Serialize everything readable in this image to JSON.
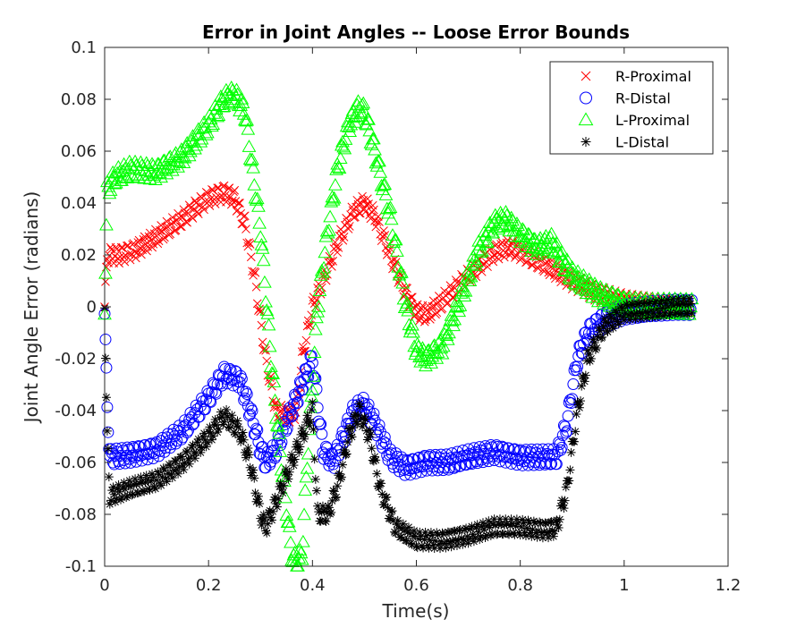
{
  "chart_data": {
    "type": "scatter",
    "title": "Error in Joint Angles -- Loose Error Bounds",
    "xlabel": "Time(s)",
    "ylabel": "Joint Angle Error (radians)",
    "xlim": [
      0,
      1.2
    ],
    "ylim": [
      -0.1,
      0.1
    ],
    "x_ticks": [
      0,
      0.2,
      0.4,
      0.6,
      0.8,
      1,
      1.2
    ],
    "x_tick_labels": [
      "0",
      "0.2",
      "0.4",
      "0.6",
      "0.8",
      "1",
      "1.2"
    ],
    "y_ticks": [
      -0.1,
      -0.08,
      -0.06,
      -0.04,
      -0.02,
      0,
      0.02,
      0.04,
      0.06,
      0.08,
      0.1
    ],
    "y_tick_labels": [
      "-0.1",
      "-0.08",
      "-0.06",
      "-0.04",
      "-0.02",
      "0",
      "0.02",
      "0.04",
      "0.06",
      "0.08",
      "0.1"
    ],
    "grid": false,
    "legend_position": "top-right",
    "series": [
      {
        "name": "R-Proximal",
        "marker": "x",
        "color": "#ff0000",
        "points": [
          [
            0,
            0
          ],
          [
            0.005,
            0.02
          ],
          [
            0.03,
            0.02
          ],
          [
            0.06,
            0.022
          ],
          [
            0.1,
            0.027
          ],
          [
            0.15,
            0.034
          ],
          [
            0.2,
            0.042
          ],
          [
            0.23,
            0.044
          ],
          [
            0.25,
            0.042
          ],
          [
            0.27,
            0.032
          ],
          [
            0.29,
            0.01
          ],
          [
            0.31,
            -0.02
          ],
          [
            0.33,
            -0.04
          ],
          [
            0.35,
            -0.042
          ],
          [
            0.37,
            -0.04
          ],
          [
            0.38,
            -0.02
          ],
          [
            0.4,
            0.0
          ],
          [
            0.42,
            0.01
          ],
          [
            0.45,
            0.025
          ],
          [
            0.48,
            0.037
          ],
          [
            0.5,
            0.04
          ],
          [
            0.52,
            0.035
          ],
          [
            0.55,
            0.02
          ],
          [
            0.58,
            0.005
          ],
          [
            0.6,
            -0.002
          ],
          [
            0.62,
            -0.003
          ],
          [
            0.65,
            0.002
          ],
          [
            0.7,
            0.012
          ],
          [
            0.75,
            0.021
          ],
          [
            0.78,
            0.023
          ],
          [
            0.8,
            0.021
          ],
          [
            0.85,
            0.016
          ],
          [
            0.9,
            0.01
          ],
          [
            0.95,
            0.005
          ],
          [
            1.0,
            0.002
          ],
          [
            1.05,
            0.001
          ],
          [
            1.1,
            0.0
          ],
          [
            1.13,
            0.0
          ]
        ]
      },
      {
        "name": "R-Distal",
        "marker": "o",
        "color": "#0000ff",
        "points": [
          [
            0,
            0
          ],
          [
            0.005,
            -0.04
          ],
          [
            0.01,
            -0.058
          ],
          [
            0.05,
            -0.057
          ],
          [
            0.1,
            -0.055
          ],
          [
            0.15,
            -0.048
          ],
          [
            0.2,
            -0.035
          ],
          [
            0.23,
            -0.026
          ],
          [
            0.26,
            -0.028
          ],
          [
            0.28,
            -0.04
          ],
          [
            0.3,
            -0.055
          ],
          [
            0.31,
            -0.06
          ],
          [
            0.33,
            -0.055
          ],
          [
            0.36,
            -0.04
          ],
          [
            0.38,
            -0.03
          ],
          [
            0.4,
            -0.02
          ],
          [
            0.42,
            -0.055
          ],
          [
            0.44,
            -0.06
          ],
          [
            0.46,
            -0.05
          ],
          [
            0.48,
            -0.04
          ],
          [
            0.5,
            -0.038
          ],
          [
            0.52,
            -0.045
          ],
          [
            0.55,
            -0.058
          ],
          [
            0.58,
            -0.062
          ],
          [
            0.62,
            -0.06
          ],
          [
            0.66,
            -0.06
          ],
          [
            0.7,
            -0.058
          ],
          [
            0.75,
            -0.056
          ],
          [
            0.8,
            -0.058
          ],
          [
            0.85,
            -0.058
          ],
          [
            0.87,
            -0.058
          ],
          [
            0.89,
            -0.045
          ],
          [
            0.91,
            -0.02
          ],
          [
            0.93,
            -0.01
          ],
          [
            0.96,
            -0.005
          ],
          [
            1.0,
            -0.002
          ],
          [
            1.05,
            -0.001
          ],
          [
            1.1,
            0.0
          ],
          [
            1.13,
            0.0
          ]
        ]
      },
      {
        "name": "L-Proximal",
        "marker": "triangle",
        "color": "#00ff00",
        "points": [
          [
            0,
            0
          ],
          [
            0.005,
            0.045
          ],
          [
            0.02,
            0.05
          ],
          [
            0.05,
            0.053
          ],
          [
            0.1,
            0.052
          ],
          [
            0.15,
            0.058
          ],
          [
            0.2,
            0.07
          ],
          [
            0.23,
            0.08
          ],
          [
            0.25,
            0.082
          ],
          [
            0.27,
            0.075
          ],
          [
            0.28,
            0.06
          ],
          [
            0.3,
            0.03
          ],
          [
            0.32,
            -0.02
          ],
          [
            0.34,
            -0.06
          ],
          [
            0.36,
            -0.095
          ],
          [
            0.37,
            -0.1
          ],
          [
            0.38,
            -0.095
          ],
          [
            0.39,
            -0.06
          ],
          [
            0.4,
            -0.03
          ],
          [
            0.41,
            0.0
          ],
          [
            0.43,
            0.03
          ],
          [
            0.45,
            0.055
          ],
          [
            0.47,
            0.07
          ],
          [
            0.49,
            0.077
          ],
          [
            0.5,
            0.075
          ],
          [
            0.52,
            0.06
          ],
          [
            0.55,
            0.035
          ],
          [
            0.58,
            0.0
          ],
          [
            0.6,
            -0.017
          ],
          [
            0.62,
            -0.02
          ],
          [
            0.65,
            -0.015
          ],
          [
            0.68,
            0.0
          ],
          [
            0.72,
            0.022
          ],
          [
            0.75,
            0.032
          ],
          [
            0.77,
            0.034
          ],
          [
            0.8,
            0.028
          ],
          [
            0.83,
            0.023
          ],
          [
            0.86,
            0.025
          ],
          [
            0.88,
            0.018
          ],
          [
            0.9,
            0.012
          ],
          [
            0.95,
            0.005
          ],
          [
            1.0,
            0.001
          ],
          [
            1.05,
            0.0
          ],
          [
            1.1,
            0.0
          ],
          [
            1.13,
            0.0
          ]
        ]
      },
      {
        "name": "L-Distal",
        "marker": "asterisk",
        "color": "#000000",
        "points": [
          [
            0,
            0
          ],
          [
            0.005,
            -0.05
          ],
          [
            0.01,
            -0.073
          ],
          [
            0.05,
            -0.07
          ],
          [
            0.1,
            -0.067
          ],
          [
            0.15,
            -0.06
          ],
          [
            0.2,
            -0.05
          ],
          [
            0.23,
            -0.042
          ],
          [
            0.26,
            -0.048
          ],
          [
            0.28,
            -0.06
          ],
          [
            0.3,
            -0.08
          ],
          [
            0.31,
            -0.085
          ],
          [
            0.33,
            -0.075
          ],
          [
            0.36,
            -0.06
          ],
          [
            0.38,
            -0.05
          ],
          [
            0.4,
            -0.04
          ],
          [
            0.41,
            -0.08
          ],
          [
            0.43,
            -0.08
          ],
          [
            0.45,
            -0.068
          ],
          [
            0.47,
            -0.05
          ],
          [
            0.49,
            -0.04
          ],
          [
            0.51,
            -0.05
          ],
          [
            0.53,
            -0.07
          ],
          [
            0.56,
            -0.085
          ],
          [
            0.6,
            -0.09
          ],
          [
            0.65,
            -0.09
          ],
          [
            0.7,
            -0.088
          ],
          [
            0.75,
            -0.085
          ],
          [
            0.8,
            -0.085
          ],
          [
            0.85,
            -0.086
          ],
          [
            0.87,
            -0.085
          ],
          [
            0.89,
            -0.07
          ],
          [
            0.91,
            -0.04
          ],
          [
            0.93,
            -0.02
          ],
          [
            0.96,
            -0.008
          ],
          [
            1.0,
            -0.002
          ],
          [
            1.05,
            -0.001
          ],
          [
            1.1,
            0.0
          ],
          [
            1.13,
            0.0
          ]
        ]
      }
    ]
  }
}
